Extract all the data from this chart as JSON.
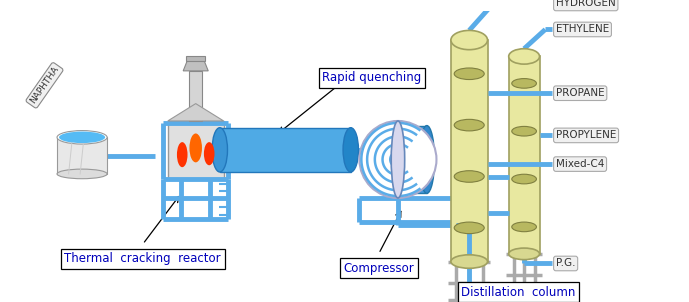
{
  "fig_width": 6.89,
  "fig_height": 3.02,
  "dpi": 100,
  "bg_color": "#ffffff",
  "pipe_color": "#5aace8",
  "pipe_lw": 3.5,
  "col_fill": "#e8e8a0",
  "col_edge": "#a0a060",
  "tray_fill": "#b8b860",
  "tray_edge": "#808040",
  "reactor_gray": "#d0d0d0",
  "chimney_gray": "#c8c8c8",
  "quench_blue": "#4499dd",
  "support_gray": "#aaaaaa",
  "output_labels": [
    "HYDROGEN",
    "ETHYLENE",
    "PROPANE",
    "PROPYLENE",
    "Mixed-C4",
    "P.G."
  ],
  "annotation_labels": {
    "naphtha": "NAPHTHA",
    "rapid": "Rapid quenching",
    "reactor": "Thermal  cracking  reactor",
    "compressor": "Compressor",
    "distillation": "Distillation  column"
  },
  "annotation_text_color": "#0000bb",
  "annotation_box_edge": "#000000",
  "annotation_box_face": "#ffffff",
  "output_label_face": "#f0f0f0",
  "output_label_edge": "#aaaaaa",
  "output_label_color": "#333333"
}
